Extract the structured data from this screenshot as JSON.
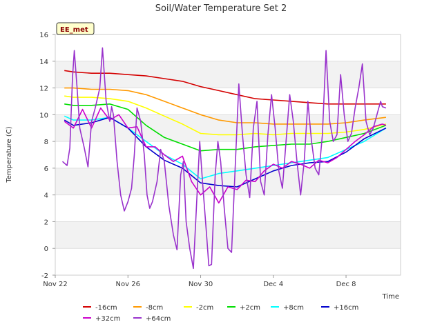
{
  "chart_data": {
    "type": "line",
    "title": "Soil/Water Temperature Set 2",
    "xlabel": "Time",
    "ylabel": "Temperature (C)",
    "badge": "EE_met",
    "ylim": [
      -2,
      16
    ],
    "xlim": [
      0,
      19
    ],
    "yticks": [
      -2,
      0,
      2,
      4,
      6,
      8,
      10,
      12,
      14,
      16
    ],
    "xticks": [
      {
        "x": 0,
        "label": "Nov 22"
      },
      {
        "x": 4,
        "label": "Nov 26"
      },
      {
        "x": 8,
        "label": "Nov 30"
      },
      {
        "x": 12,
        "label": "Dec 4"
      },
      {
        "x": 16,
        "label": "Dec 8"
      }
    ],
    "grid": true,
    "legend_position": "bottom",
    "series": [
      {
        "name": "-16cm",
        "color": "#d40000",
        "x": [
          0.5,
          1,
          2,
          3,
          4,
          5,
          6,
          7,
          8,
          9,
          10,
          11,
          12,
          13,
          14,
          15,
          16,
          17,
          18.2
        ],
        "y": [
          13.3,
          13.2,
          13.1,
          13.1,
          13.0,
          12.9,
          12.7,
          12.5,
          12.1,
          11.8,
          11.5,
          11.2,
          11.1,
          11.0,
          10.9,
          10.8,
          10.8,
          10.8,
          10.8
        ]
      },
      {
        "name": "-8cm",
        "color": "#ff9900",
        "x": [
          0.5,
          1,
          2,
          3,
          4,
          5,
          6,
          7,
          8,
          9,
          10,
          11,
          12,
          13,
          14,
          15,
          16,
          17,
          18.2
        ],
        "y": [
          12.0,
          12.0,
          11.9,
          11.9,
          11.8,
          11.5,
          11.0,
          10.5,
          10.0,
          9.6,
          9.4,
          9.4,
          9.3,
          9.3,
          9.3,
          9.3,
          9.4,
          9.6,
          9.8
        ]
      },
      {
        "name": "-2cm",
        "color": "#ffff00",
        "x": [
          0.5,
          1,
          2,
          3,
          4,
          5,
          6,
          7,
          8,
          9,
          10,
          11,
          12,
          13,
          14,
          15,
          16,
          17,
          18.2
        ],
        "y": [
          11.4,
          11.3,
          11.3,
          11.2,
          11.0,
          10.5,
          9.9,
          9.3,
          8.6,
          8.5,
          8.5,
          8.6,
          8.5,
          8.6,
          8.6,
          8.6,
          8.7,
          8.9,
          9.3
        ]
      },
      {
        "name": "+2cm",
        "color": "#00dd00",
        "x": [
          0.5,
          1,
          2,
          3,
          4,
          5,
          6,
          7,
          8,
          9,
          10,
          11,
          12,
          13,
          14,
          15,
          16,
          17,
          18.2
        ],
        "y": [
          10.8,
          10.7,
          10.7,
          10.8,
          10.4,
          9.2,
          8.3,
          7.8,
          7.3,
          7.4,
          7.4,
          7.6,
          7.7,
          7.8,
          7.8,
          8.0,
          8.3,
          8.6,
          9.2
        ]
      },
      {
        "name": "+8cm",
        "color": "#00ffff",
        "x": [
          0.5,
          1,
          2,
          3,
          4,
          5,
          6,
          7,
          8,
          9,
          10,
          11,
          12,
          13,
          14,
          15,
          16,
          17,
          18.2
        ],
        "y": [
          9.9,
          9.6,
          9.6,
          9.8,
          9.0,
          8.0,
          7.0,
          6.3,
          5.2,
          5.6,
          5.8,
          6.0,
          6.2,
          6.4,
          6.6,
          6.8,
          7.4,
          8.0,
          9.0
        ]
      },
      {
        "name": "+16cm",
        "color": "#0000cc",
        "x": [
          0.5,
          1,
          2,
          3,
          4,
          5,
          6,
          7,
          8,
          9,
          10,
          11,
          12,
          13,
          14,
          15,
          16,
          17,
          18.2
        ],
        "y": [
          9.6,
          9.2,
          9.4,
          9.8,
          9.0,
          7.6,
          6.6,
          6.0,
          4.9,
          4.7,
          4.6,
          5.2,
          5.8,
          6.2,
          6.4,
          6.5,
          7.2,
          8.2,
          9.0
        ]
      },
      {
        "name": "+32cm",
        "color": "#cc00cc",
        "x": [
          0.5,
          1,
          1.5,
          2,
          2.5,
          3,
          3.5,
          4,
          4.5,
          5,
          5.5,
          6,
          6.5,
          7,
          7.5,
          8,
          8.5,
          9,
          9.5,
          10,
          10.5,
          11,
          11.5,
          12,
          12.5,
          13,
          13.5,
          14,
          14.5,
          15,
          15.5,
          16,
          16.5,
          17,
          17.5,
          18,
          18.2
        ],
        "y": [
          9.5,
          9.0,
          10.4,
          9.0,
          10.5,
          9.6,
          10.0,
          9.0,
          9.1,
          7.6,
          7.6,
          7.0,
          6.5,
          6.9,
          5.0,
          4.0,
          4.6,
          3.4,
          4.6,
          4.4,
          5.1,
          5.0,
          5.8,
          6.3,
          6.0,
          6.5,
          6.3,
          6.0,
          6.6,
          6.4,
          6.8,
          7.4,
          8.0,
          8.5,
          9.1,
          9.3,
          9.2
        ]
      },
      {
        "name": "+64cm",
        "color": "#9932cc",
        "x": [
          0.4,
          0.65,
          0.8,
          0.95,
          1.05,
          1.2,
          1.35,
          1.6,
          1.8,
          2.0,
          2.2,
          2.45,
          2.6,
          2.8,
          3.0,
          3.1,
          3.2,
          3.4,
          3.6,
          3.8,
          4.0,
          4.2,
          4.35,
          4.5,
          4.7,
          4.9,
          5.05,
          5.2,
          5.35,
          5.6,
          5.8,
          6.0,
          6.25,
          6.5,
          6.7,
          6.9,
          7.05,
          7.2,
          7.4,
          7.6,
          7.8,
          7.95,
          8.1,
          8.3,
          8.45,
          8.6,
          8.8,
          8.95,
          9.1,
          9.3,
          9.5,
          9.7,
          9.9,
          10.1,
          10.3,
          10.5,
          10.7,
          10.9,
          11.1,
          11.3,
          11.5,
          11.7,
          11.9,
          12.1,
          12.3,
          12.5,
          12.7,
          12.9,
          13.1,
          13.3,
          13.5,
          13.7,
          13.9,
          14.1,
          14.3,
          14.5,
          14.7,
          14.9,
          15.1,
          15.3,
          15.5,
          15.7,
          15.9,
          16.1,
          16.3,
          16.5,
          16.7,
          16.9,
          17.1,
          17.3,
          17.5,
          17.7,
          17.9,
          18.0,
          18.2
        ],
        "y": [
          6.5,
          6.2,
          7.5,
          12.8,
          14.8,
          12.0,
          9.0,
          7.5,
          6.1,
          9.5,
          10.5,
          12.0,
          15.0,
          11.0,
          9.5,
          10.6,
          10.0,
          6.5,
          4.0,
          2.8,
          3.5,
          4.5,
          7.0,
          10.5,
          9.5,
          7.0,
          4.0,
          3.0,
          3.5,
          5.0,
          7.4,
          6.5,
          3.2,
          1.0,
          -0.1,
          5.5,
          6.5,
          2.0,
          0.0,
          -1.5,
          4.0,
          8.0,
          5.0,
          1.5,
          -1.3,
          -1.2,
          5.5,
          8.0,
          6.5,
          3.0,
          0.0,
          -0.3,
          6.0,
          12.3,
          8.5,
          5.5,
          3.8,
          9.0,
          11.0,
          5.0,
          4.0,
          8.5,
          11.5,
          9.0,
          5.8,
          4.5,
          8.0,
          11.5,
          9.5,
          6.5,
          4.0,
          6.5,
          11.0,
          8.0,
          6.0,
          5.5,
          8.5,
          14.8,
          9.5,
          8.0,
          8.5,
          13.0,
          10.0,
          8.0,
          8.6,
          10.5,
          12.0,
          13.8,
          9.5,
          8.5,
          9.0,
          10.0,
          11.0,
          10.6,
          10.5
        ]
      }
    ]
  }
}
